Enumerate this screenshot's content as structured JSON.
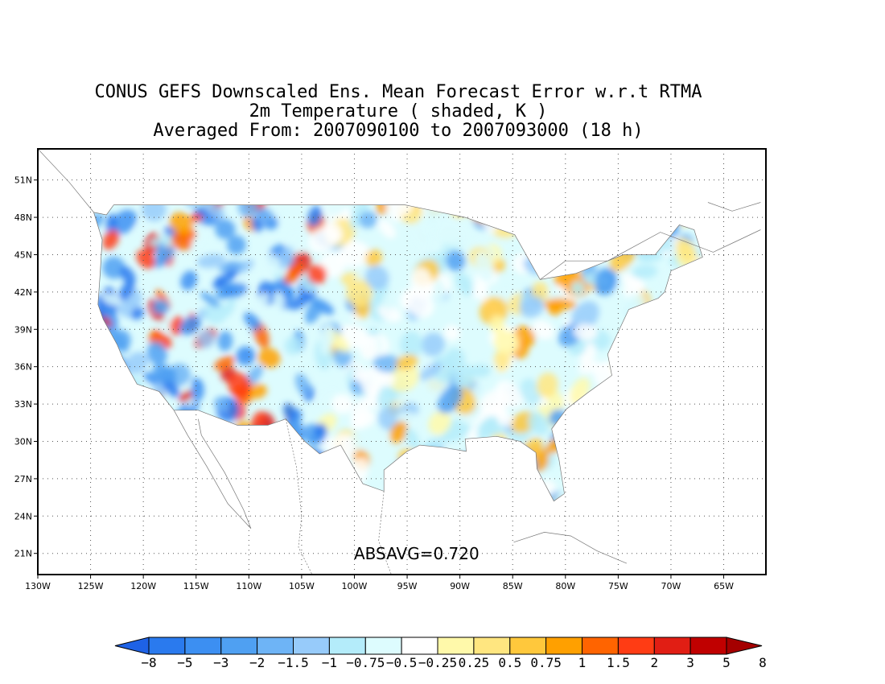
{
  "title": {
    "line1": "CONUS GEFS Downscaled Ens. Mean Forecast Error w.r.t RTMA",
    "line2": "2m Temperature ( shaded, K )",
    "line3": "Averaged From: 2007090100 to 2007093000 (18 h)"
  },
  "stat_label": "ABSAVG=0.720",
  "map": {
    "lon_range": [
      -130,
      -61
    ],
    "lat_range": [
      19.3,
      53.5
    ],
    "lon_ticks": [
      "130W",
      "125W",
      "120W",
      "115W",
      "110W",
      "105W",
      "100W",
      "95W",
      "90W",
      "85W",
      "80W",
      "75W",
      "70W",
      "65W"
    ],
    "lat_ticks": [
      "51N",
      "48N",
      "45N",
      "42N",
      "39N",
      "36N",
      "33N",
      "30N",
      "27N",
      "24N",
      "21N"
    ],
    "grid": "dotted"
  },
  "colorbar": {
    "labels": [
      "-8",
      "-5",
      "-3",
      "-2",
      "-1.5",
      "-1",
      "-0.75",
      "-0.5",
      "-0.25",
      "0.25",
      "0.5",
      "0.75",
      "1",
      "1.5",
      "2",
      "3",
      "5",
      "8"
    ],
    "colors": [
      "#1e62e6",
      "#2a7aee",
      "#3c8ff2",
      "#4fa0f2",
      "#6eb4f6",
      "#97cbfa",
      "#b4ecfa",
      "#ddfcfe",
      "#ffffff",
      "#fff9aa",
      "#ffe680",
      "#ffc83c",
      "#ffa000",
      "#ff6400",
      "#ff3c14",
      "#e11e14",
      "#c00000",
      "#a50000"
    ]
  }
}
